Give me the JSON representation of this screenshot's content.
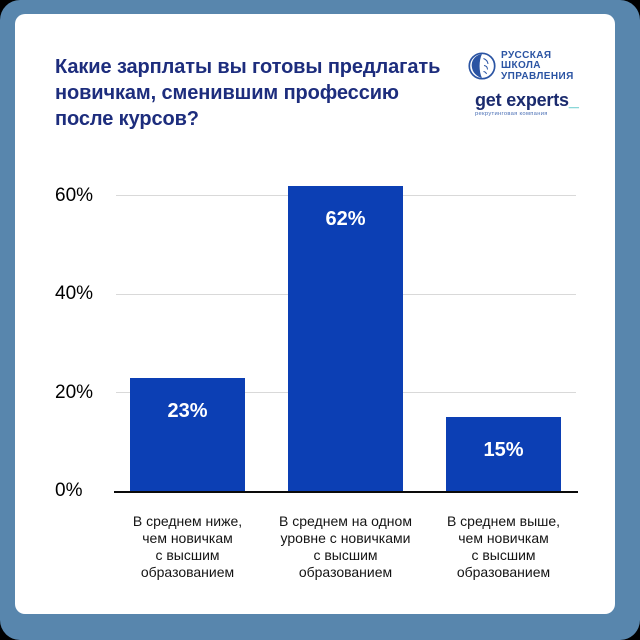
{
  "frame": {
    "border_color": "#5886ad",
    "corner_background": "#000000",
    "card_color": "#ffffff"
  },
  "header": {
    "title": "Какие зарплаты вы готовы предлагать новичкам, сменившим профессию после курсов?",
    "title_lines": [
      "Какие зарплаты вы готовы предлагать",
      "новичкам, сменившим профессию",
      "после курсов?"
    ],
    "title_color": "#1d2d7d"
  },
  "logos": {
    "rsu": {
      "icon": "rsu-emblem-icon",
      "lines": [
        "РУССКАЯ",
        "ШКОЛА",
        "УПРАВЛЕНИЯ"
      ],
      "color": "#2b54a3"
    },
    "get_experts": {
      "wordmark": "get experts",
      "underscore": "_",
      "tagline": "рекрутинговая компания",
      "wordmark_color": "#1b2b6e",
      "underscore_color": "#2fb7ba",
      "tagline_color": "#4a6fb5"
    }
  },
  "chart_data": {
    "type": "bar",
    "title": "Какие зарплаты вы готовы предлагать новичкам, сменившим профессию после курсов?",
    "categories": [
      "В среднем ниже, чем новичкам с высшим образованием",
      "В среднем на одном уровне с новичками с высшим образованием",
      "В среднем выше, чем новичкам с высшим образованием"
    ],
    "category_lines": [
      [
        "В среднем ниже,",
        "чем новичкам",
        "с высшим",
        "образованием"
      ],
      [
        "В среднем на одном",
        "уровне с новичками",
        "с высшим",
        "образованием"
      ],
      [
        "В среднем выше,",
        "чем новичкам",
        "с высшим",
        "образованием"
      ]
    ],
    "values": [
      23,
      62,
      15
    ],
    "value_labels": [
      "23%",
      "62%",
      "15%"
    ],
    "yticks": [
      0,
      20,
      40,
      60
    ],
    "ytick_labels": [
      "0%",
      "20%",
      "40%",
      "60%"
    ],
    "ylim": [
      0,
      64
    ],
    "xlabel": "",
    "ylabel": "",
    "grid": true,
    "legend": "none",
    "bar_color": "#0c3fb4",
    "value_label_color": "#ffffff",
    "gridline_color": "#d9d9d9",
    "axis_line_color": "#0a0a0a"
  }
}
